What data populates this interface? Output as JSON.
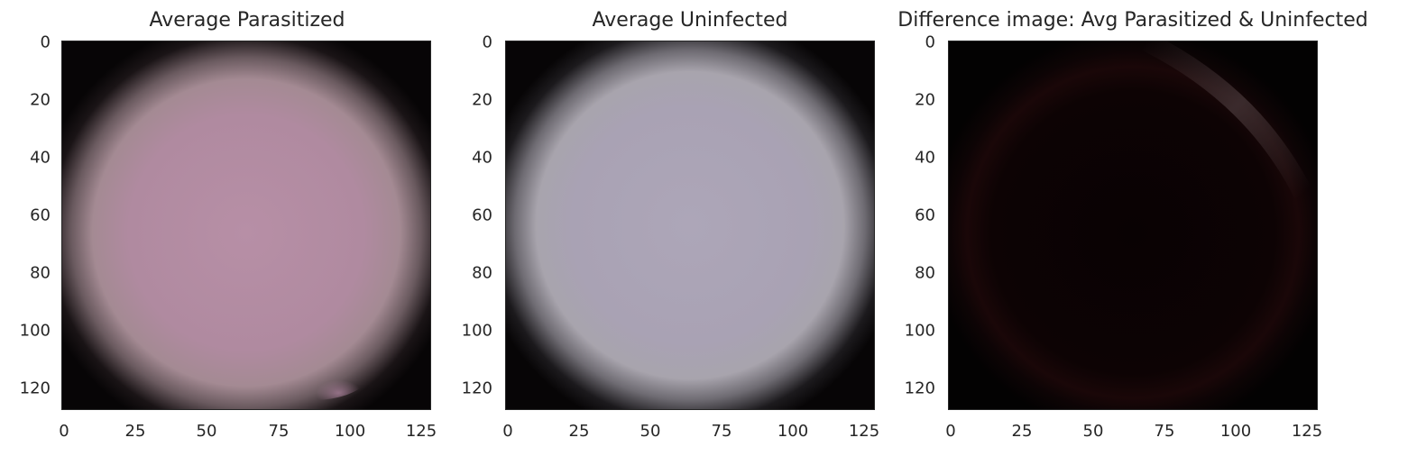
{
  "chart_data": [
    {
      "type": "heatmap",
      "title": "Average Parasitized",
      "xticks": [
        "0",
        "25",
        "50",
        "75",
        "100",
        "125"
      ],
      "yticks": [
        "0",
        "20",
        "40",
        "60",
        "80",
        "100",
        "120"
      ],
      "xlim": [
        0,
        128
      ],
      "ylim": [
        128,
        0
      ],
      "grid": false,
      "center_color": "#b08aa0",
      "edge_color": "#070506"
    },
    {
      "type": "heatmap",
      "title": "Average Uninfected",
      "xticks": [
        "0",
        "25",
        "50",
        "75",
        "100",
        "125"
      ],
      "yticks": [
        "0",
        "20",
        "40",
        "60",
        "80",
        "100",
        "120"
      ],
      "xlim": [
        0,
        128
      ],
      "ylim": [
        128,
        0
      ],
      "grid": false,
      "center_color": "#a9a2b4",
      "edge_color": "#070506"
    },
    {
      "type": "heatmap",
      "title": "Difference image: Avg Parasitized & Uninfected",
      "xticks": [
        "0",
        "25",
        "50",
        "75",
        "100",
        "125"
      ],
      "yticks": [
        "0",
        "20",
        "40",
        "60",
        "80",
        "100",
        "120"
      ],
      "xlim": [
        0,
        128
      ],
      "ylim": [
        128,
        0
      ],
      "grid": false,
      "center_color": "#070203",
      "edge_color": "#030202"
    }
  ]
}
